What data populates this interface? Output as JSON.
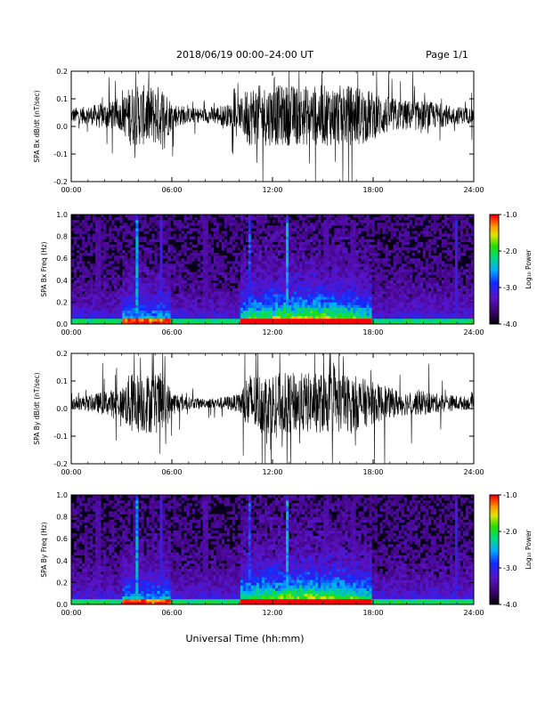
{
  "header": {
    "title": "2018/06/19   00:00–24:00 UT",
    "page": "Page 1/1"
  },
  "footer": {
    "xlabel": "Universal Time (hh:mm)"
  },
  "colorbar": {
    "ticks": [
      "-1.0",
      "-2.0",
      "-3.0",
      "-4.0"
    ],
    "label": "Log₁₀ Power"
  },
  "colors": {
    "background": "#ffffff",
    "trace": "#000000",
    "spectrogram_background": "#080018"
  },
  "chart_data": [
    {
      "type": "line",
      "ylabel": "SPA Bx dB/dt (nT/sec)",
      "xlim": [
        0,
        24
      ],
      "ylim": [
        -0.2,
        0.2
      ],
      "xticks": [
        "00:00",
        "06:00",
        "12:00",
        "18:00",
        "24:00"
      ],
      "yticks": [
        "-0.2",
        "-0.1",
        "0.0",
        "0.1",
        "0.2"
      ],
      "x_hours": [
        0,
        1,
        2,
        3,
        3.5,
        4,
        4.5,
        5,
        5.5,
        6,
        7,
        8,
        9,
        10,
        10.5,
        11,
        12,
        13,
        14,
        15,
        16,
        17,
        18,
        19,
        20,
        21,
        22,
        23,
        24
      ],
      "amplitude_envelope": [
        0.05,
        0.06,
        0.09,
        0.1,
        0.2,
        0.2,
        0.2,
        0.2,
        0.2,
        0.09,
        0.05,
        0.05,
        0.07,
        0.08,
        0.2,
        0.2,
        0.2,
        0.2,
        0.2,
        0.2,
        0.2,
        0.2,
        0.16,
        0.12,
        0.1,
        0.1,
        0.08,
        0.06,
        0.05
      ],
      "baseline": 0.04
    },
    {
      "type": "heatmap",
      "ylabel": "SPA Bx Freq (Hz)",
      "xlim": [
        0,
        24
      ],
      "ylim": [
        0.0,
        1.0
      ],
      "xticks": [
        "00:00",
        "06:00",
        "12:00",
        "18:00",
        "24:00"
      ],
      "yticks": [
        "0.0",
        "0.2",
        "0.4",
        "0.6",
        "0.8",
        "1.0"
      ],
      "colorbar_range": [
        -4.0,
        -1.0
      ],
      "vertical_bursts_hours": [
        1.6,
        3.9,
        5.3,
        8.0,
        10.6,
        12.9,
        15.2,
        16.8,
        22.9
      ],
      "active_interval_hours": [
        10.0,
        18.0
      ]
    },
    {
      "type": "line",
      "ylabel": "SPA By dB/dt (nT/sec)",
      "xlim": [
        0,
        24
      ],
      "ylim": [
        -0.2,
        0.2
      ],
      "xticks": [
        "00:00",
        "06:00",
        "12:00",
        "18:00",
        "24:00"
      ],
      "yticks": [
        "-0.2",
        "-0.1",
        "0.0",
        "0.1",
        "0.2"
      ],
      "x_hours": [
        0,
        1,
        2,
        3,
        3.5,
        4,
        4.5,
        5,
        5.5,
        6,
        7,
        8,
        9,
        10,
        10.5,
        11,
        12,
        13,
        14,
        15,
        16,
        17,
        18,
        19,
        20,
        21,
        22,
        23,
        24
      ],
      "amplitude_envelope": [
        0.04,
        0.05,
        0.08,
        0.1,
        0.2,
        0.2,
        0.2,
        0.2,
        0.2,
        0.08,
        0.04,
        0.03,
        0.04,
        0.06,
        0.2,
        0.2,
        0.2,
        0.2,
        0.2,
        0.2,
        0.2,
        0.18,
        0.14,
        0.1,
        0.08,
        0.08,
        0.06,
        0.05,
        0.04
      ],
      "baseline": 0.02
    },
    {
      "type": "heatmap",
      "ylabel": "SPA By Freq (Hz)",
      "xlim": [
        0,
        24
      ],
      "ylim": [
        0.0,
        1.0
      ],
      "xticks": [
        "00:00",
        "06:00",
        "12:00",
        "18:00",
        "24:00"
      ],
      "yticks": [
        "0.0",
        "0.2",
        "0.4",
        "0.6",
        "0.8",
        "1.0"
      ],
      "colorbar_range": [
        -4.0,
        -1.0
      ],
      "vertical_bursts_hours": [
        1.6,
        3.9,
        5.3,
        8.0,
        10.6,
        12.9,
        15.2,
        16.8,
        22.9
      ],
      "active_interval_hours": [
        10.0,
        18.0
      ]
    }
  ]
}
